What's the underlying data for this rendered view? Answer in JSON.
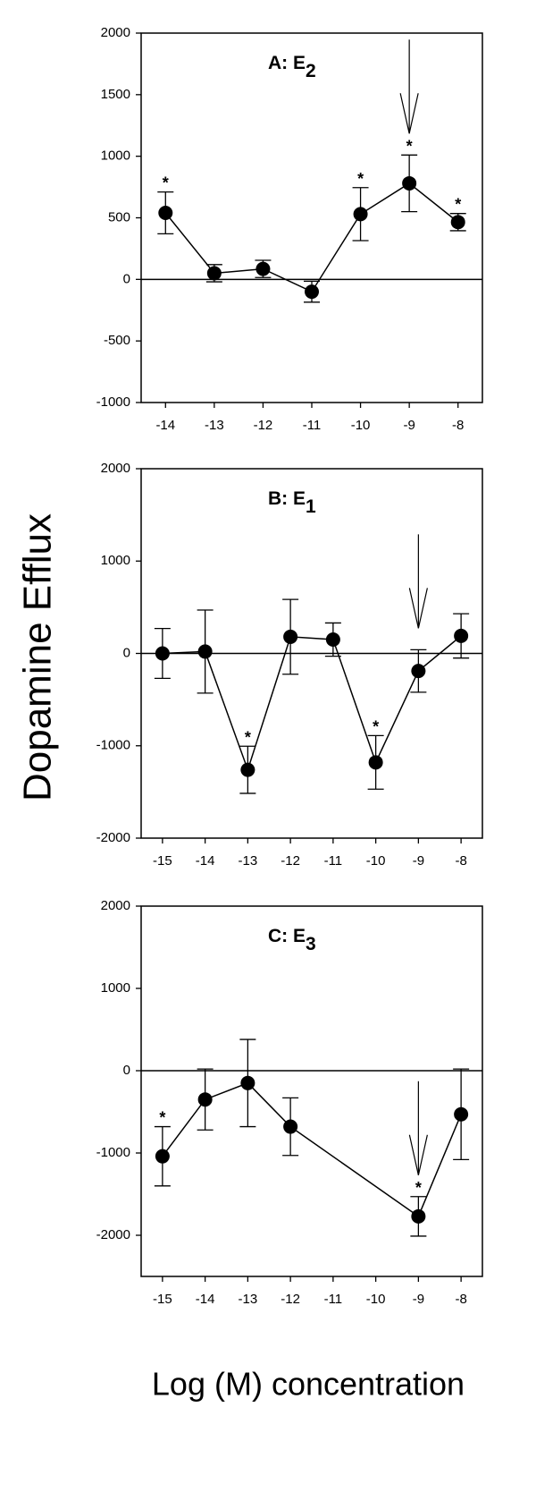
{
  "ylabel": "Dopamine Efflux",
  "xlabel": "Log (M) concentration",
  "chart_data": [
    {
      "type": "line",
      "title": "A:  E",
      "title_subscript": "2",
      "color": "#000000",
      "x": [
        -14,
        -13,
        -12,
        -11,
        -10,
        -9,
        -8
      ],
      "values": [
        540,
        50,
        85,
        -100,
        530,
        780,
        465
      ],
      "errors": [
        170,
        70,
        70,
        85,
        215,
        230,
        70
      ],
      "xlim": [
        -14.5,
        -7.5
      ],
      "xticks": [
        -14,
        -13,
        -12,
        -11,
        -10,
        -9,
        -8
      ],
      "ylim": [
        -1000,
        2000
      ],
      "yticks": [
        -1000,
        -500,
        0,
        500,
        1000,
        1500,
        2000
      ],
      "annotations": [
        {
          "x": -14,
          "text": "*"
        },
        {
          "x": -10,
          "text": "*"
        },
        {
          "x": -9,
          "text": "*"
        },
        {
          "x": -8,
          "text": "*"
        }
      ],
      "arrow_x": -9
    },
    {
      "type": "line",
      "title": "B:  E",
      "title_subscript": "1",
      "color": "#000000",
      "x": [
        -15,
        -14,
        -13,
        -12,
        -11,
        -10,
        -9,
        -8
      ],
      "values": [
        0,
        20,
        -1260,
        180,
        150,
        -1180,
        -190,
        190
      ],
      "errors": [
        270,
        450,
        255,
        405,
        180,
        290,
        230,
        240
      ],
      "xlim": [
        -15.5,
        -7.5
      ],
      "xticks": [
        -15,
        -14,
        -13,
        -12,
        -11,
        -10,
        -9,
        -8
      ],
      "ylim": [
        -2000,
        2000
      ],
      "yticks": [
        -2000,
        -1000,
        0,
        1000,
        2000
      ],
      "annotations": [
        {
          "x": -13,
          "text": "*"
        },
        {
          "x": -10,
          "text": "*"
        }
      ],
      "arrow_x": -9
    },
    {
      "type": "line",
      "title": "C:  E",
      "title_subscript": "3",
      "color": "#000000",
      "x": [
        -15,
        -14,
        -13,
        -12,
        -9,
        -8
      ],
      "values": [
        -1040,
        -350,
        -150,
        -680,
        -1770,
        -530
      ],
      "errors": [
        360,
        370,
        530,
        350,
        240,
        550
      ],
      "xlim": [
        -15.5,
        -7.5
      ],
      "xticks": [
        -15,
        -14,
        -13,
        -12,
        -11,
        -10,
        -9,
        -8
      ],
      "ylim": [
        -2500,
        2000
      ],
      "yticks": [
        -2000,
        -1000,
        0,
        1000,
        2000
      ],
      "annotations": [
        {
          "x": -15,
          "text": "*"
        },
        {
          "x": -9,
          "text": "*"
        }
      ],
      "arrow_x": -9
    }
  ]
}
